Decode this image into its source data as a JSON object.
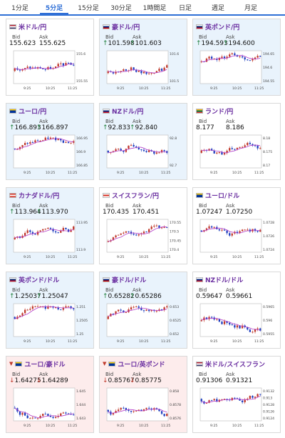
{
  "tabs": [
    "1分足",
    "5分足",
    "15分足",
    "30分足",
    "1時間足",
    "日足",
    "週足",
    "月足"
  ],
  "active_tab": 1,
  "labels": {
    "bid": "Bid",
    "ask": "Ask"
  },
  "x_ticks": [
    "9:25",
    "10:25",
    "11:25"
  ],
  "colors": {
    "accent": "#2f6fd6",
    "candle_up": "#c0392b",
    "candle_down": "#1f3fbf",
    "ma": "#b43cc8"
  },
  "cards": [
    {
      "pair": "米ドル/円",
      "flag": "us-jp",
      "trend": "none",
      "bid": "155.623",
      "ask": "155.625",
      "y_ticks": [
        "155.6",
        "155.55"
      ]
    },
    {
      "pair": "豪ドル/円",
      "flag": "au-jp",
      "trend": "up",
      "bid": "101.598",
      "ask": "101.603",
      "y_ticks": [
        "101.6",
        "101.5"
      ]
    },
    {
      "pair": "英ポンド/円",
      "flag": "gb-jp",
      "trend": "up",
      "bid": "194.593",
      "ask": "194.600",
      "y_ticks": [
        "194.65",
        "194.6",
        "194.55"
      ]
    },
    {
      "pair": "ユーロ/円",
      "flag": "eu-jp",
      "trend": "up",
      "bid": "166.893",
      "ask": "166.897",
      "y_ticks": [
        "166.95",
        "166.9",
        "166.85"
      ]
    },
    {
      "pair": "NZドル/円",
      "flag": "nz-jp",
      "trend": "up",
      "bid": "92.833",
      "ask": "92.840",
      "y_ticks": [
        "92.8",
        "92.7"
      ]
    },
    {
      "pair": "ランド/円",
      "flag": "za-jp",
      "trend": "none",
      "bid": "8.177",
      "ask": "8.186",
      "y_ticks": [
        "8.18",
        "8.175",
        "8.17"
      ]
    },
    {
      "pair": "カナダドル/円",
      "flag": "ca-jp",
      "trend": "up",
      "bid": "113.964",
      "ask": "113.970",
      "y_ticks": [
        "113.95",
        "113.9"
      ]
    },
    {
      "pair": "スイスフラン/円",
      "flag": "ch-jp",
      "trend": "none",
      "bid": "170.435",
      "ask": "170.451",
      "y_ticks": [
        "170.55",
        "170.5",
        "170.45",
        "170.4"
      ]
    },
    {
      "pair": "ユーロ/ドル",
      "flag": "eu-us",
      "trend": "none",
      "bid": "1.07247",
      "ask": "1.07250",
      "y_ticks": [
        "1.0728",
        "1.0726",
        "1.0724"
      ]
    },
    {
      "pair": "英ポンド/ドル",
      "flag": "gb-us",
      "trend": "up",
      "bid": "1.25037",
      "ask": "1.25047",
      "y_ticks": [
        "1.251",
        "1.2505",
        "1.25"
      ]
    },
    {
      "pair": "豪ドル/ドル",
      "flag": "au-us",
      "trend": "up",
      "bid": "0.65282",
      "ask": "0.65286",
      "y_ticks": [
        "0.653",
        "0.6525",
        "0.652"
      ]
    },
    {
      "pair": "NZドル/ドル",
      "flag": "nz-us",
      "trend": "none",
      "bid": "0.59647",
      "ask": "0.59661",
      "y_ticks": [
        "0.5965",
        "0.596",
        "0.5955"
      ]
    },
    {
      "pair": "ユーロ/豪ドル",
      "flag": "eu-au",
      "trend": "down",
      "bid": "1.64275",
      "ask": "1.64289",
      "y_ticks": [
        "1.645",
        "1.644",
        "1.643"
      ]
    },
    {
      "pair": "ユーロ/英ポンド",
      "flag": "eu-gb",
      "trend": "down",
      "bid": "0.85767",
      "ask": "0.85775",
      "y_ticks": [
        "0.858",
        "0.8578",
        "0.8576"
      ]
    },
    {
      "pair": "米ドル/スイスフラン",
      "flag": "us-ch",
      "trend": "none",
      "bid": "0.91306",
      "ask": "0.91321",
      "y_ticks": [
        "0.9132",
        "0.913",
        "0.9128",
        "0.9126",
        "0.9124"
      ]
    }
  ]
}
